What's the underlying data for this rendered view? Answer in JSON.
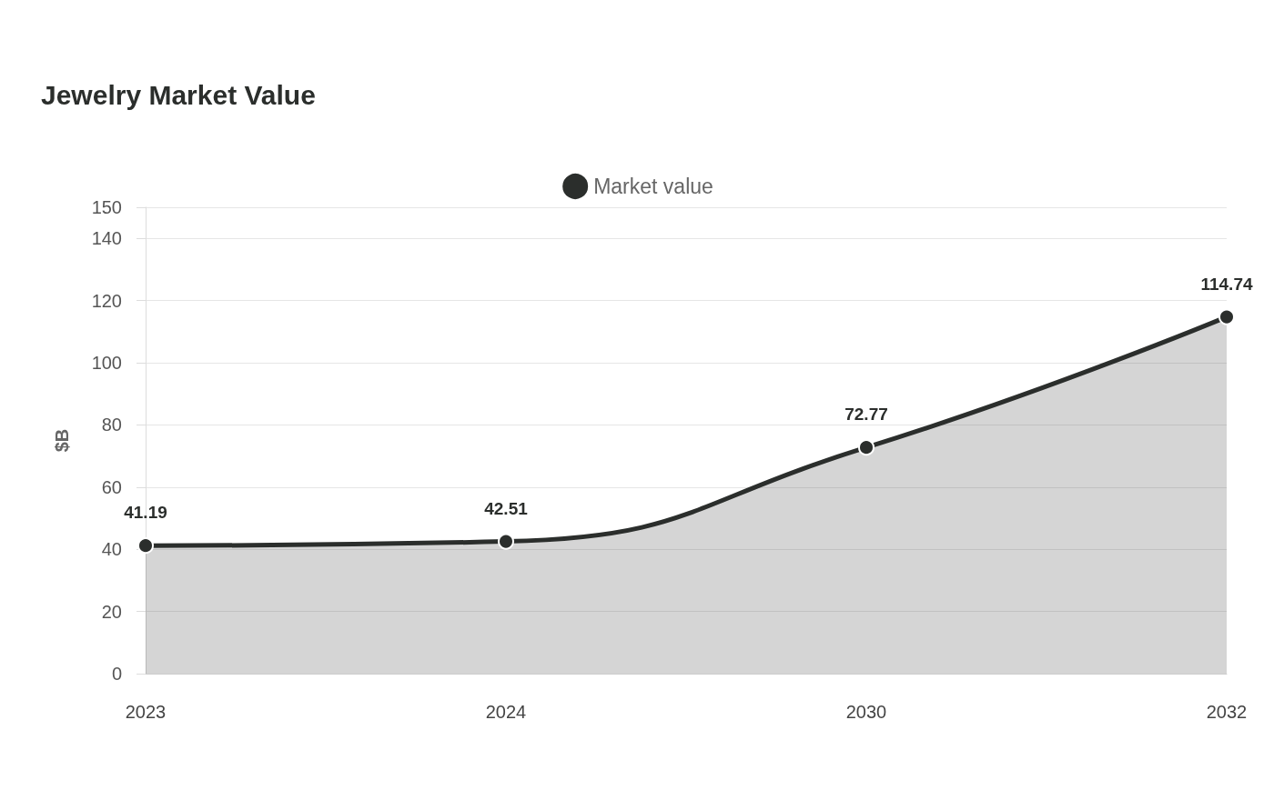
{
  "chart_data": {
    "type": "area",
    "title": "Jewelry Market Value",
    "ylabel": "$B",
    "categories": [
      "2023",
      "2024",
      "2030",
      "2032"
    ],
    "series": [
      {
        "name": "Market value",
        "color": "#2b2e2c",
        "values": [
          41.19,
          42.51,
          72.77,
          114.74
        ]
      }
    ],
    "ylim": [
      0,
      150
    ],
    "yticks": [
      0,
      20,
      40,
      60,
      80,
      100,
      120,
      140,
      150
    ],
    "grid": "y",
    "legend": "top",
    "marker": "circle",
    "data_labels": true
  }
}
